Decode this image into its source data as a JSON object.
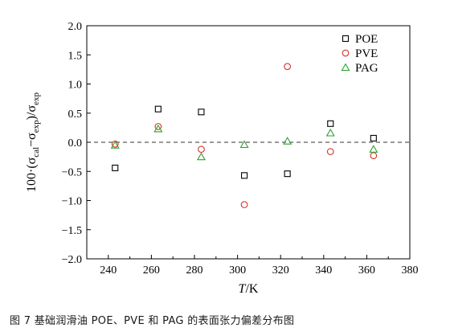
{
  "chart_data": {
    "type": "scatter",
    "xlabel": "T/K",
    "ylabel": "100·(σcal−σexp)/σexp",
    "xlim": [
      230,
      380
    ],
    "ylim": [
      -2.0,
      2.0
    ],
    "x_ticks": [
      240,
      260,
      280,
      300,
      320,
      340,
      360,
      380
    ],
    "y_ticks": [
      -2.0,
      -1.5,
      -1.0,
      -0.5,
      0.0,
      0.5,
      1.0,
      1.5,
      2.0
    ],
    "x_tick_labels": [
      "240",
      "260",
      "280",
      "300",
      "320",
      "340",
      "360",
      "380"
    ],
    "y_tick_labels": [
      "−2.0",
      "−1.5",
      "−1.0",
      "−0.5",
      "0.0",
      "0.5",
      "1.0",
      "1.5",
      "2.0"
    ],
    "grid": false,
    "zero_line": "dashed",
    "legend_position": "top-right",
    "series": [
      {
        "name": "POE",
        "marker": "square",
        "color": "#000000",
        "x": [
          243.15,
          263.15,
          283.15,
          303.15,
          323.15,
          343.15,
          363.15
        ],
        "y": [
          -0.44,
          0.57,
          0.52,
          -0.57,
          -0.54,
          0.32,
          0.07
        ]
      },
      {
        "name": "PVE",
        "marker": "circle",
        "color": "#d9322a",
        "x": [
          243.15,
          263.15,
          283.15,
          303.15,
          323.15,
          343.15,
          363.15
        ],
        "y": [
          -0.03,
          0.27,
          -0.12,
          -1.07,
          1.3,
          -0.16,
          -0.23
        ]
      },
      {
        "name": "PAG",
        "marker": "triangle",
        "color": "#2ea22e",
        "x": [
          243.15,
          263.15,
          283.15,
          303.15,
          323.15,
          343.15,
          363.15
        ],
        "y": [
          -0.05,
          0.23,
          -0.25,
          -0.04,
          0.02,
          0.16,
          -0.12
        ]
      }
    ]
  },
  "axis_labels": {
    "x_italic": "T",
    "x_unit": "/K",
    "y_prefix": "100·(σ",
    "y_sub_cal": "cal",
    "y_minus": "−σ",
    "y_sub_exp1": "exp",
    "y_mid": ")/σ",
    "y_sub_exp2": "exp"
  },
  "caption": "图 7  基础润滑油 POE、PVE 和 PAG 的表面张力偏差分布图"
}
